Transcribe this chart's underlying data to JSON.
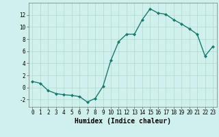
{
  "x": [
    0,
    1,
    2,
    3,
    4,
    5,
    6,
    7,
    8,
    9,
    10,
    11,
    12,
    13,
    14,
    15,
    16,
    17,
    18,
    19,
    20,
    21,
    22,
    23
  ],
  "y": [
    1,
    0.7,
    -0.5,
    -1.0,
    -1.2,
    -1.3,
    -1.5,
    -2.4,
    -1.8,
    0.2,
    4.5,
    7.6,
    8.8,
    8.8,
    11.2,
    13.0,
    12.3,
    12.1,
    11.2,
    10.5,
    9.7,
    8.8,
    5.2,
    6.8
  ],
  "line_color": "#1a7a6e",
  "marker": "D",
  "marker_size": 2.0,
  "bg_color": "#cff0ec",
  "grid_color": "#b0d8d0",
  "xlabel": "Humidex (Indice chaleur)",
  "xlabel_fontsize": 7,
  "xlim": [
    -0.5,
    23.5
  ],
  "ylim": [
    -3.2,
    14.0
  ],
  "yticks": [
    -2,
    0,
    2,
    4,
    6,
    8,
    10,
    12
  ],
  "xticks": [
    0,
    1,
    2,
    3,
    4,
    5,
    6,
    7,
    8,
    9,
    10,
    11,
    12,
    13,
    14,
    15,
    16,
    17,
    18,
    19,
    20,
    21,
    22,
    23
  ],
  "tick_fontsize": 5.5,
  "line_width": 1.0
}
